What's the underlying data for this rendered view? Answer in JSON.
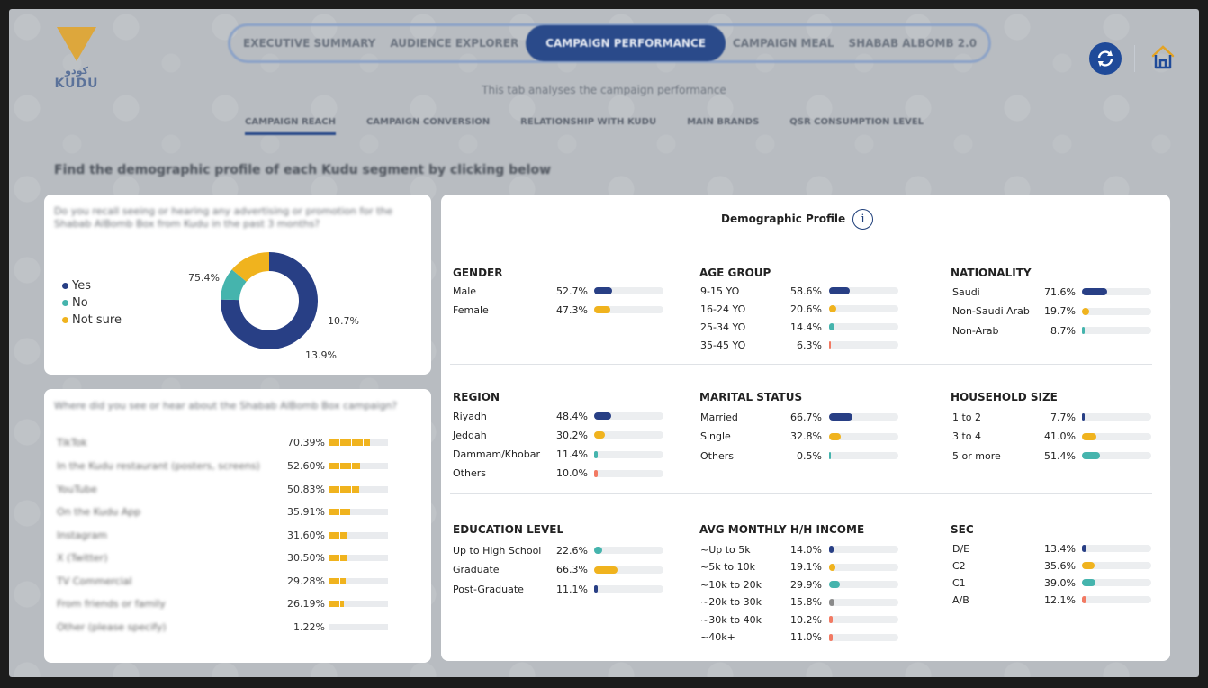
{
  "logo": {
    "arabic": "كودو",
    "english": "KUDU"
  },
  "nav_tabs": [
    {
      "label": "EXECUTIVE SUMMARY",
      "active": false
    },
    {
      "label": "AUDIENCE EXPLORER",
      "active": false
    },
    {
      "label": "CAMPAIGN PERFORMANCE",
      "active": true
    },
    {
      "label": "CAMPAIGN MEAL",
      "active": false
    },
    {
      "label": "SHABAB ALBOMB 2.0",
      "active": false
    }
  ],
  "subtitle": "This tab analyses the campaign performance",
  "sub_tabs": [
    {
      "label": "CAMPAIGN REACH",
      "active": true
    },
    {
      "label": "CAMPAIGN CONVERSION",
      "active": false
    },
    {
      "label": "RELATIONSHIP WITH KUDU",
      "active": false
    },
    {
      "label": "MAIN BRANDS",
      "active": false
    },
    {
      "label": "QSR CONSUMPTION LEVEL",
      "active": false
    }
  ],
  "instruction": "Find the demographic profile of each Kudu segment by clicking below",
  "icons": {
    "refresh": "refresh-icon",
    "home": "home-icon"
  },
  "colors": {
    "navy": "#283f85",
    "teal": "#45b4ad",
    "yellow": "#f0b31e",
    "grey": "#8a8a8a",
    "coral": "#f27a63"
  },
  "recall_card": {
    "question": "Do you recall seeing or hearing any advertising or promotion for the Shabab AlBomb Box from Kudu in the past 3 months?",
    "legend": [
      {
        "label": "Yes",
        "color": "#283f85"
      },
      {
        "label": "No",
        "color": "#45b4ad"
      },
      {
        "label": "Not sure",
        "color": "#f0b31e"
      }
    ],
    "slice_labels": [
      "75.4%",
      "10.7%",
      "13.9%"
    ]
  },
  "channels_card": {
    "question": "Where did you see or hear about the Shabab AlBomb Box campaign?",
    "rows": [
      {
        "label": "TikTok",
        "value": "70.39%",
        "pct": 70.39
      },
      {
        "label": "In the Kudu restaurant (posters, screens)",
        "value": "52.60%",
        "pct": 52.6
      },
      {
        "label": "YouTube",
        "value": "50.83%",
        "pct": 50.83
      },
      {
        "label": "On the Kudu App",
        "value": "35.91%",
        "pct": 35.91
      },
      {
        "label": "Instagram",
        "value": "31.60%",
        "pct": 31.6
      },
      {
        "label": "X (Twitter)",
        "value": "30.50%",
        "pct": 30.5
      },
      {
        "label": "TV Commercial",
        "value": "29.28%",
        "pct": 29.28
      },
      {
        "label": "From friends or family",
        "value": "26.19%",
        "pct": 26.19
      },
      {
        "label": "Other (please specify)",
        "value": "1.22%",
        "pct": 1.22
      }
    ]
  },
  "chart_data": {
    "type": "pie",
    "categories": [
      "Yes",
      "No",
      "Not sure"
    ],
    "values": [
      75.4,
      10.7,
      13.9
    ]
  },
  "demographic": {
    "title": "Demographic Profile",
    "info_icon": "i",
    "sections": [
      {
        "title": "GENDER",
        "rows": [
          {
            "label": "Male",
            "value": "52.7%",
            "pct": 52.7,
            "color": "#283f85"
          },
          {
            "label": "Female",
            "value": "47.3%",
            "pct": 47.3,
            "color": "#f0b31e"
          }
        ]
      },
      {
        "title": "AGE GROUP",
        "rows": [
          {
            "label": "9-15 YO",
            "value": "58.6%",
            "pct": 58.6,
            "color": "#283f85"
          },
          {
            "label": "16-24 YO",
            "value": "20.6%",
            "pct": 20.6,
            "color": "#f0b31e"
          },
          {
            "label": "25-34 YO",
            "value": "14.4%",
            "pct": 14.4,
            "color": "#45b4ad"
          },
          {
            "label": "35-45 YO",
            "value": "6.3%",
            "pct": 6.3,
            "color": "#f27a63"
          }
        ]
      },
      {
        "title": "NATIONALITY",
        "rows": [
          {
            "label": "Saudi",
            "value": "71.6%",
            "pct": 71.6,
            "color": "#283f85"
          },
          {
            "label": "Non-Saudi Arab",
            "value": "19.7%",
            "pct": 19.7,
            "color": "#f0b31e"
          },
          {
            "label": "Non-Arab",
            "value": "8.7%",
            "pct": 8.7,
            "color": "#45b4ad"
          }
        ]
      },
      {
        "title": "REGION",
        "rows": [
          {
            "label": "Riyadh",
            "value": "48.4%",
            "pct": 48.4,
            "color": "#283f85"
          },
          {
            "label": "Jeddah",
            "value": "30.2%",
            "pct": 30.2,
            "color": "#f0b31e"
          },
          {
            "label": "Dammam/Khobar",
            "value": "11.4%",
            "pct": 11.4,
            "color": "#45b4ad"
          },
          {
            "label": "Others",
            "value": "10.0%",
            "pct": 10.0,
            "color": "#f27a63"
          }
        ]
      },
      {
        "title": "MARITAL STATUS",
        "rows": [
          {
            "label": "Married",
            "value": "66.7%",
            "pct": 66.7,
            "color": "#283f85"
          },
          {
            "label": "Single",
            "value": "32.8%",
            "pct": 32.8,
            "color": "#f0b31e"
          },
          {
            "label": "Others",
            "value": "0.5%",
            "pct": 0.5,
            "color": "#45b4ad"
          }
        ]
      },
      {
        "title": "HOUSEHOLD SIZE",
        "rows": [
          {
            "label": "1 to 2",
            "value": "7.7%",
            "pct": 7.7,
            "color": "#283f85"
          },
          {
            "label": "3 to 4",
            "value": "41.0%",
            "pct": 41.0,
            "color": "#f0b31e"
          },
          {
            "label": "5 or more",
            "value": "51.4%",
            "pct": 51.4,
            "color": "#45b4ad"
          }
        ]
      },
      {
        "title": "EDUCATION LEVEL",
        "rows": [
          {
            "label": "Up to High School",
            "value": "22.6%",
            "pct": 22.6,
            "color": "#45b4ad"
          },
          {
            "label": "Graduate",
            "value": "66.3%",
            "pct": 66.3,
            "color": "#f0b31e"
          },
          {
            "label": "Post-Graduate",
            "value": "11.1%",
            "pct": 11.1,
            "color": "#283f85"
          }
        ]
      },
      {
        "title": "AVG MONTHLY H/H INCOME",
        "rows": [
          {
            "label": "~Up to 5k",
            "value": "14.0%",
            "pct": 14.0,
            "color": "#283f85"
          },
          {
            "label": "~5k to 10k",
            "value": "19.1%",
            "pct": 19.1,
            "color": "#f0b31e"
          },
          {
            "label": "~10k to 20k",
            "value": "29.9%",
            "pct": 29.9,
            "color": "#45b4ad"
          },
          {
            "label": "~20k to 30k",
            "value": "15.8%",
            "pct": 15.8,
            "color": "#8a8a8a"
          },
          {
            "label": "~30k to 40k",
            "value": "10.2%",
            "pct": 10.2,
            "color": "#f27a63"
          },
          {
            "label": "~40k+",
            "value": "11.0%",
            "pct": 11.0,
            "color": "#f27a63"
          }
        ]
      },
      {
        "title": "SEC",
        "rows": [
          {
            "label": "D/E",
            "value": "13.4%",
            "pct": 13.4,
            "color": "#283f85"
          },
          {
            "label": "C2",
            "value": "35.6%",
            "pct": 35.6,
            "color": "#f0b31e"
          },
          {
            "label": "C1",
            "value": "39.0%",
            "pct": 39.0,
            "color": "#45b4ad"
          },
          {
            "label": "A/B",
            "value": "12.1%",
            "pct": 12.1,
            "color": "#f27a63"
          }
        ]
      }
    ]
  }
}
